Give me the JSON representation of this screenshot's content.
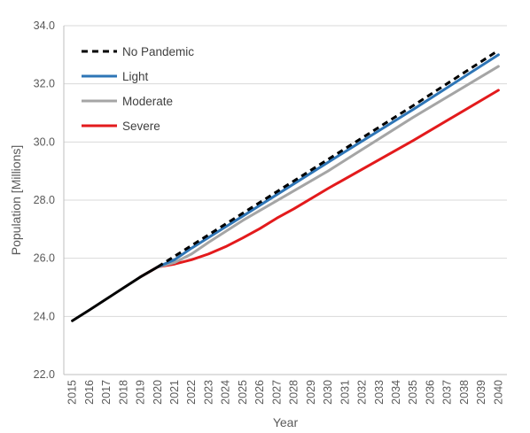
{
  "chart_data": {
    "type": "line",
    "title": "",
    "xlabel": "Year",
    "ylabel": "Population [Millions]",
    "ylim": [
      22.0,
      34.0
    ],
    "y_ticks": [
      "22.0",
      "24.0",
      "26.0",
      "28.0",
      "30.0",
      "32.0",
      "34.0"
    ],
    "x": [
      2015,
      2016,
      2017,
      2018,
      2019,
      2020,
      2021,
      2022,
      2023,
      2024,
      2025,
      2026,
      2027,
      2028,
      2029,
      2030,
      2031,
      2032,
      2033,
      2034,
      2035,
      2036,
      2037,
      2038,
      2039,
      2040
    ],
    "x_ticks": [
      "2015",
      "2016",
      "2017",
      "2018",
      "2019",
      "2020",
      "2021",
      "2022",
      "2023",
      "2024",
      "2025",
      "2026",
      "2027",
      "2028",
      "2029",
      "2030",
      "2031",
      "2032",
      "2033",
      "2034",
      "2035",
      "2036",
      "2037",
      "2038",
      "2039",
      "2040"
    ],
    "grid": "horizontal",
    "legend_position": "top-left",
    "historical": {
      "x": [
        2015,
        2016,
        2017,
        2018,
        2019,
        2020
      ],
      "values": [
        23.85,
        24.22,
        24.6,
        24.98,
        25.36,
        25.7
      ],
      "color": "#000000"
    },
    "series": [
      {
        "name": "No Pandemic",
        "color": "#000000",
        "dash": true,
        "x": [
          2020,
          2025,
          2030,
          2035,
          2040
        ],
        "values": [
          25.7,
          27.55,
          29.4,
          31.25,
          33.15
        ]
      },
      {
        "name": "Light",
        "color": "#2e75b6",
        "dash": false,
        "x": [
          2020,
          2021,
          2022,
          2025,
          2030,
          2035,
          2040
        ],
        "values": [
          25.7,
          25.95,
          26.35,
          27.45,
          29.3,
          31.12,
          33.0
        ]
      },
      {
        "name": "Moderate",
        "color": "#a5a5a5",
        "dash": false,
        "x": [
          2020,
          2021,
          2022,
          2023,
          2025,
          2030,
          2035,
          2040
        ],
        "values": [
          25.7,
          25.85,
          26.15,
          26.55,
          27.3,
          29.0,
          30.85,
          32.6
        ]
      },
      {
        "name": "Severe",
        "color": "#e31a1c",
        "dash": false,
        "x": [
          2019,
          2020,
          2021,
          2022,
          2023,
          2024,
          2025,
          2026,
          2027,
          2028,
          2030,
          2035,
          2040
        ],
        "values": [
          25.36,
          25.7,
          25.8,
          25.95,
          26.15,
          26.4,
          26.7,
          27.02,
          27.38,
          27.7,
          28.4,
          30.05,
          31.78
        ]
      }
    ]
  }
}
